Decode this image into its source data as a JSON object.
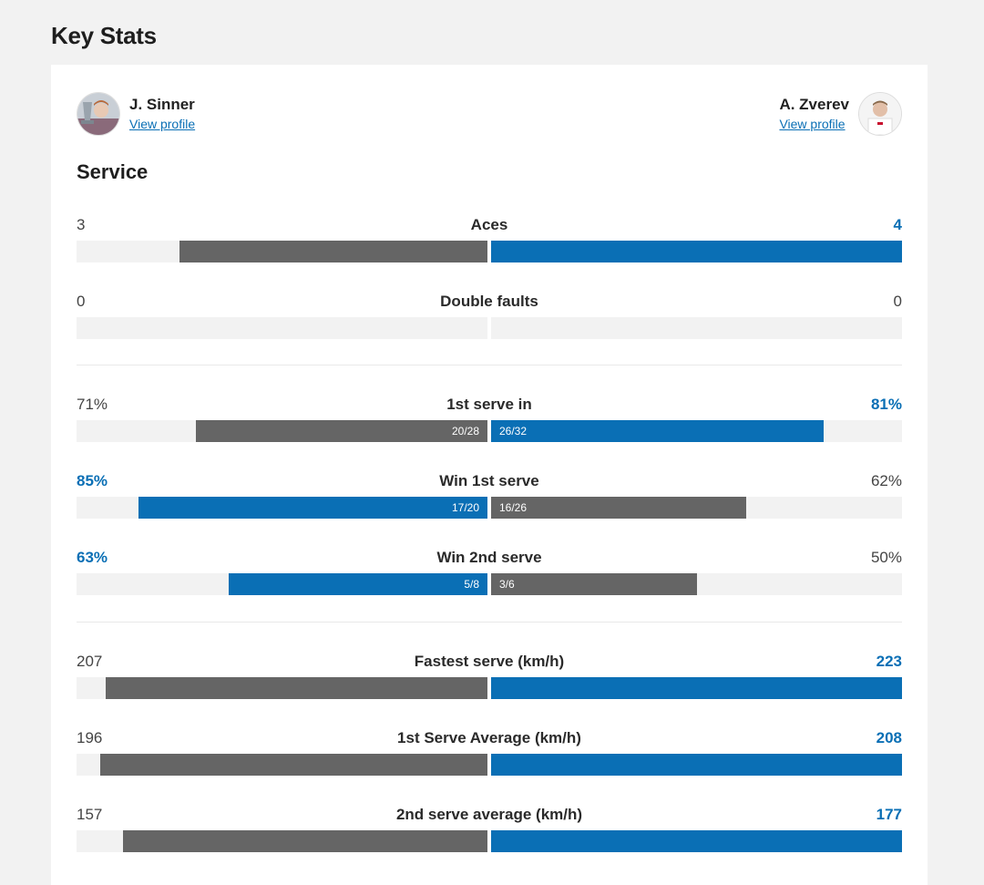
{
  "page": {
    "title": "Key Stats"
  },
  "players": {
    "left": {
      "name": "J. Sinner",
      "link": "View profile",
      "avatar_icon": "player-photo-icon"
    },
    "right": {
      "name": "A. Zverev",
      "link": "View profile",
      "avatar_icon": "player-photo-icon"
    }
  },
  "colors": {
    "leader": "#0a6fb5",
    "other": "#656565",
    "track": "#f2f2f2"
  },
  "section": {
    "title": "Service"
  },
  "stats": [
    {
      "label": "Aces",
      "left": "3",
      "right": "4",
      "left_fill": 0.75,
      "right_fill": 1.0,
      "leader": "right",
      "left_frac": "",
      "right_frac": ""
    },
    {
      "label": "Double faults",
      "left": "0",
      "right": "0",
      "left_fill": 0,
      "right_fill": 0,
      "leader": "none",
      "left_frac": "",
      "right_frac": ""
    },
    {
      "label": "1st serve in",
      "left": "71%",
      "right": "81%",
      "left_fill": 0.71,
      "right_fill": 0.81,
      "leader": "right",
      "left_frac": "20/28",
      "right_frac": "26/32"
    },
    {
      "label": "Win 1st serve",
      "left": "85%",
      "right": "62%",
      "left_fill": 0.85,
      "right_fill": 0.62,
      "leader": "left",
      "left_frac": "17/20",
      "right_frac": "16/26"
    },
    {
      "label": "Win 2nd serve",
      "left": "63%",
      "right": "50%",
      "left_fill": 0.63,
      "right_fill": 0.5,
      "leader": "left",
      "left_frac": "5/8",
      "right_frac": "3/6"
    },
    {
      "label": "Fastest serve (km/h)",
      "left": "207",
      "right": "223",
      "left_fill": 0.928,
      "right_fill": 1.0,
      "leader": "right",
      "left_frac": "",
      "right_frac": ""
    },
    {
      "label": "1st Serve Average (km/h)",
      "left": "196",
      "right": "208",
      "left_fill": 0.942,
      "right_fill": 1.0,
      "leader": "right",
      "left_frac": "",
      "right_frac": ""
    },
    {
      "label": "2nd serve average (km/h)",
      "left": "157",
      "right": "177",
      "left_fill": 0.887,
      "right_fill": 1.0,
      "leader": "right",
      "left_frac": "",
      "right_frac": ""
    }
  ]
}
